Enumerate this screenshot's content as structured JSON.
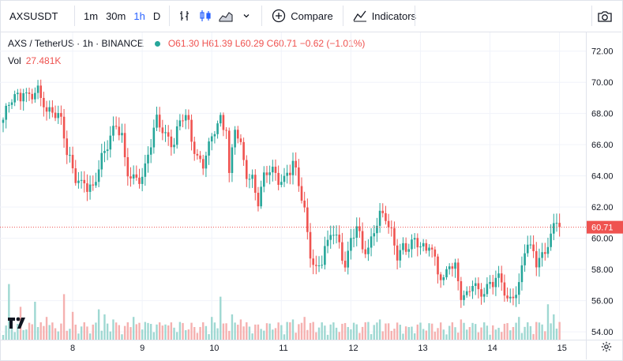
{
  "toolbar": {
    "symbol": "AXSUSDT",
    "intervals": [
      "1m",
      "30m",
      "1h",
      "D"
    ],
    "active_interval": "1h",
    "compare_label": "Compare",
    "indicators_label": "Indicators"
  },
  "legend": {
    "title": "AXS / TetherUS · 1h · BINANCE",
    "open": "O61.30",
    "high": "H61.39",
    "low": "L60.29",
    "close": "C60.71",
    "change": "−0.62 (−1.01%)",
    "vol_label": "Vol",
    "vol_value": "27.481K"
  },
  "colors": {
    "up": "#26a69a",
    "down": "#ef5350",
    "active": "#2962ff",
    "grid": "#f0f3fa"
  },
  "chart_data": {
    "type": "candlestick",
    "y_ticks": [
      "72.00",
      "70.00",
      "68.00",
      "66.00",
      "64.00",
      "62.00",
      "60.00",
      "58.00",
      "56.00",
      "54.00"
    ],
    "x_labels": [
      "8",
      "9",
      "10",
      "11",
      "12",
      "13",
      "14",
      "15"
    ],
    "ylim": [
      53.5,
      73.2
    ],
    "last_price": 60.71,
    "last_price_label": "60.71",
    "candles_per_day": 24,
    "day_label_index": [
      9,
      33,
      57,
      81,
      105,
      129,
      153,
      177
    ],
    "close_path": [
      [
        0,
        67.6
      ],
      [
        3,
        68.8
      ],
      [
        7,
        69.3
      ],
      [
        12,
        69.2
      ],
      [
        15,
        68.0
      ],
      [
        17,
        68.5
      ],
      [
        20,
        67.6
      ],
      [
        22,
        65.2
      ],
      [
        25,
        63.9
      ],
      [
        29,
        63.4
      ],
      [
        31,
        63.0
      ],
      [
        34,
        65.0
      ],
      [
        37,
        66.8
      ],
      [
        39,
        67.4
      ],
      [
        41,
        66.4
      ],
      [
        43,
        64.0
      ],
      [
        45,
        63.8
      ],
      [
        48,
        64.2
      ],
      [
        51,
        66.0
      ],
      [
        53,
        67.4
      ],
      [
        56,
        66.8
      ],
      [
        59,
        66.2
      ],
      [
        61,
        67.4
      ],
      [
        63,
        67.9
      ],
      [
        65,
        66.4
      ],
      [
        67,
        65.3
      ],
      [
        69,
        64.9
      ],
      [
        71,
        65.7
      ],
      [
        73,
        66.8
      ],
      [
        75,
        67.6
      ],
      [
        77,
        66.9
      ],
      [
        78,
        64.2
      ],
      [
        80,
        67.2
      ],
      [
        82,
        65.6
      ],
      [
        84,
        63.8
      ],
      [
        86,
        63.9
      ],
      [
        88,
        62.6
      ],
      [
        90,
        63.9
      ],
      [
        92,
        64.2
      ],
      [
        95,
        63.8
      ],
      [
        97,
        63.9
      ],
      [
        100,
        64.8
      ],
      [
        102,
        63.3
      ],
      [
        104,
        61.6
      ],
      [
        106,
        59.2
      ],
      [
        108,
        58.1
      ],
      [
        110,
        58.6
      ],
      [
        112,
        59.9
      ],
      [
        114,
        60.4
      ],
      [
        116,
        59.7
      ],
      [
        118,
        58.5
      ],
      [
        120,
        59.9
      ],
      [
        122,
        60.5
      ],
      [
        124,
        59.3
      ],
      [
        126,
        59.4
      ],
      [
        128,
        60.8
      ],
      [
        130,
        61.4
      ],
      [
        132,
        61.2
      ],
      [
        134,
        60.2
      ],
      [
        136,
        59.1
      ],
      [
        138,
        59.6
      ],
      [
        140,
        59.3
      ],
      [
        142,
        59.6
      ],
      [
        145,
        59.4
      ],
      [
        148,
        59.4
      ],
      [
        150,
        57.8
      ],
      [
        152,
        57.0
      ],
      [
        154,
        58.2
      ],
      [
        156,
        58.3
      ],
      [
        158,
        56.6
      ],
      [
        160,
        56.2
      ],
      [
        162,
        57.0
      ],
      [
        164,
        56.4
      ],
      [
        166,
        56.8
      ],
      [
        168,
        57.2
      ],
      [
        170,
        57.4
      ],
      [
        172,
        57.0
      ],
      [
        174,
        55.9
      ],
      [
        176,
        56.6
      ],
      [
        178,
        57.1
      ],
      [
        180,
        59.3
      ],
      [
        182,
        59.6
      ],
      [
        184,
        58.4
      ],
      [
        186,
        59.0
      ],
      [
        188,
        59.9
      ],
      [
        190,
        60.7
      ],
      [
        191,
        61.1
      ],
      [
        192,
        60.71
      ]
    ],
    "volumes_top": [
      [
        2,
        44
      ],
      [
        6,
        26
      ],
      [
        11,
        30
      ],
      [
        15,
        18
      ],
      [
        21,
        36
      ],
      [
        24,
        22
      ],
      [
        33,
        24
      ],
      [
        35,
        20
      ],
      [
        38,
        16
      ],
      [
        45,
        18
      ],
      [
        49,
        14
      ],
      [
        53,
        12
      ],
      [
        56,
        12
      ],
      [
        61,
        14
      ],
      [
        66,
        10
      ],
      [
        72,
        18
      ],
      [
        75,
        34
      ],
      [
        79,
        20
      ],
      [
        82,
        16
      ],
      [
        88,
        12
      ],
      [
        93,
        8
      ],
      [
        98,
        14
      ],
      [
        100,
        16
      ],
      [
        104,
        18
      ],
      [
        107,
        14
      ],
      [
        113,
        12
      ],
      [
        119,
        10
      ],
      [
        126,
        14
      ],
      [
        130,
        16
      ],
      [
        140,
        10
      ],
      [
        152,
        8
      ],
      [
        158,
        16
      ],
      [
        161,
        10
      ],
      [
        170,
        8
      ],
      [
        176,
        10
      ],
      [
        178,
        18
      ],
      [
        184,
        14
      ],
      [
        186,
        12
      ],
      [
        188,
        28
      ],
      [
        190,
        20
      ],
      [
        192,
        14
      ]
    ]
  }
}
